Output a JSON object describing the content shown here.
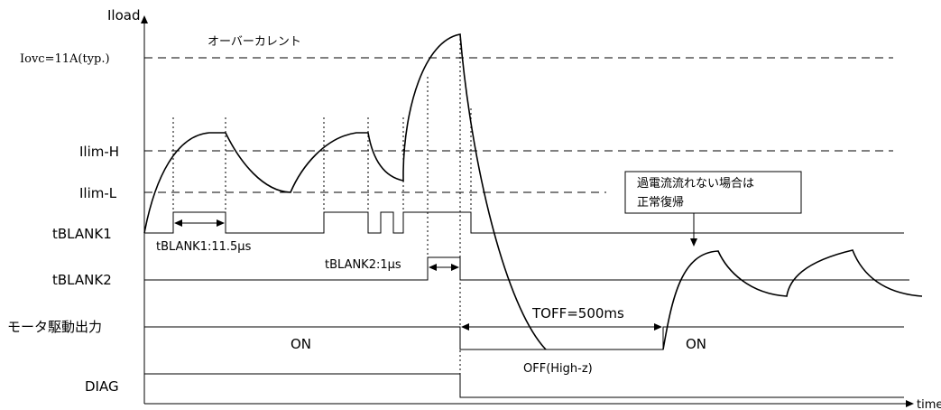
{
  "axes": {
    "y_label": "Iload",
    "x_label": "time"
  },
  "levels": {
    "iovc": "Iovc=11A(typ.)",
    "ilim_h": "Ilim-H",
    "ilim_l": "Ilim-L"
  },
  "signals": {
    "tblank1": "tBLANK1",
    "tblank2": "tBLANK2",
    "motor_output": "モータ駆動出力",
    "diag": "DIAG"
  },
  "annotations": {
    "overcurrent": "オーバーカレント",
    "tblank1_width": "tBLANK1:11.5μs",
    "tblank2_width": "tBLANK2:1μs",
    "toff": "TOFF=500ms",
    "on_1": "ON",
    "on_2": "ON",
    "off": "OFF(High-z)",
    "callout_line1": "過電流流れない場合は",
    "callout_line2": "正常復帰"
  }
}
